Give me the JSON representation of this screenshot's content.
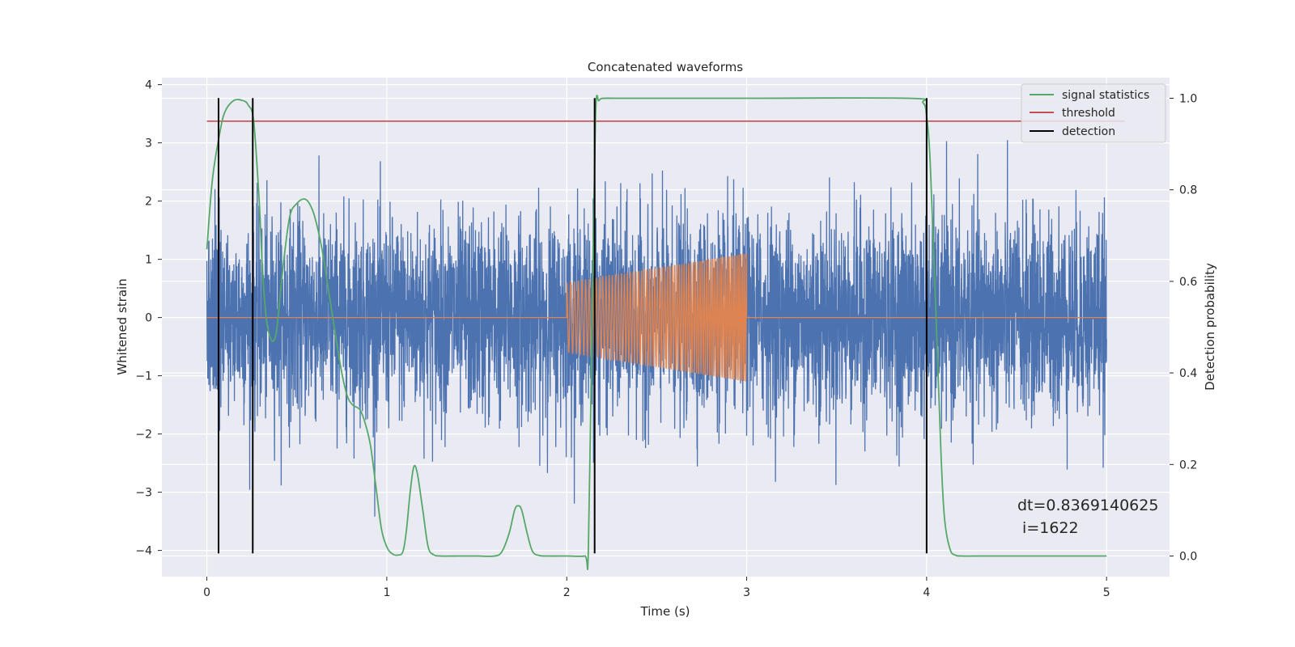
{
  "chart_data": {
    "type": "line",
    "title": "Concatenated waveforms",
    "xlabel": "Time (s)",
    "ylabel": "Whitened strain",
    "y2label": "Detection probability",
    "xlim": [
      -0.25,
      5.35
    ],
    "ylim": [
      -4.45,
      4.12
    ],
    "y2lim": [
      -0.045,
      1.045
    ],
    "x_ticks": [
      0,
      1,
      2,
      3,
      4,
      5
    ],
    "y_ticks": [
      -4,
      -3,
      -2,
      -1,
      0,
      1,
      2,
      3,
      4
    ],
    "y2_ticks": [
      0.0,
      0.2,
      0.4,
      0.6,
      0.8,
      1.0
    ],
    "x_tick_labels": [
      "0",
      "1",
      "2",
      "3",
      "4",
      "5"
    ],
    "y_tick_labels": [
      "−4",
      "−3",
      "−2",
      "−1",
      "0",
      "1",
      "2",
      "3",
      "4"
    ],
    "y2_tick_labels": [
      "0.0",
      "0.2",
      "0.4",
      "0.6",
      "0.8",
      "1.0"
    ],
    "grid": true,
    "legend_position": "top-right",
    "colors": {
      "strain": "#4c72b0",
      "injection": "#dd8452",
      "signal_statistics": "#55a868",
      "threshold": "#c44e52",
      "detection": "#000000",
      "plot_bg": "#eaeaf2",
      "grid": "#ffffff"
    },
    "legend": [
      {
        "label": "signal statistics",
        "color": "#55a868"
      },
      {
        "label": "threshold",
        "color": "#c44e52"
      },
      {
        "label": "detection",
        "color": "#000000"
      }
    ],
    "series": [
      {
        "name": "strain",
        "axis": "left",
        "description_kind": "noise",
        "x_range": [
          0,
          5
        ],
        "sigma": 0.85
      },
      {
        "name": "injection",
        "axis": "left",
        "x_range": [
          2.0,
          3.0
        ],
        "amplitude_start": 0.6,
        "amplitude_end": 1.1
      },
      {
        "name": "signal statistics",
        "axis": "right",
        "x": [
          0.0,
          0.03,
          0.07,
          0.1,
          0.15,
          0.2,
          0.23,
          0.26,
          0.29,
          0.31,
          0.33,
          0.35,
          0.37,
          0.39,
          0.42,
          0.46,
          0.5,
          0.54,
          0.57,
          0.6,
          0.64,
          0.68,
          0.72,
          0.75,
          0.78,
          0.81,
          0.85,
          0.88,
          0.91,
          0.94,
          0.97,
          1.0,
          1.03,
          1.06,
          1.09,
          1.11,
          1.13,
          1.15,
          1.17,
          1.2,
          1.23,
          1.26,
          1.3,
          1.4,
          1.5,
          1.6,
          1.64,
          1.68,
          1.71,
          1.73,
          1.75,
          1.78,
          1.81,
          1.85,
          1.9,
          2.0,
          2.1,
          2.12,
          2.14,
          2.16,
          2.18,
          2.22,
          2.3,
          3.0,
          3.9,
          3.98,
          4.0,
          4.02,
          4.05,
          4.08,
          4.1,
          4.13,
          4.16,
          4.2,
          4.3,
          5.0
        ],
        "values": [
          0.67,
          0.82,
          0.92,
          0.97,
          0.995,
          0.995,
          0.985,
          0.95,
          0.78,
          0.62,
          0.52,
          0.48,
          0.47,
          0.5,
          0.62,
          0.74,
          0.77,
          0.78,
          0.77,
          0.74,
          0.67,
          0.57,
          0.47,
          0.4,
          0.35,
          0.33,
          0.32,
          0.29,
          0.24,
          0.15,
          0.06,
          0.02,
          0.005,
          0.002,
          0.01,
          0.06,
          0.14,
          0.195,
          0.18,
          0.1,
          0.02,
          0.003,
          0.0,
          0.0,
          0.0,
          0.0,
          0.01,
          0.05,
          0.1,
          0.11,
          0.1,
          0.05,
          0.01,
          0.001,
          0.0,
          0.0,
          0.0,
          0.01,
          0.5,
          0.96,
          0.995,
          1.0,
          1.0,
          1.0,
          1.0,
          0.99,
          0.96,
          0.86,
          0.55,
          0.22,
          0.08,
          0.015,
          0.002,
          0.0,
          0.0,
          0.0
        ]
      },
      {
        "name": "threshold",
        "axis": "right",
        "value": 0.95,
        "x_range": [
          0,
          5.1
        ]
      }
    ],
    "detections": [
      0.065,
      0.255,
      2.155,
      4.0
    ],
    "detection_range": [
      -4.05,
      3.77
    ],
    "annotation": {
      "line1": "dt=0.8369140625",
      "line2": " i=1622"
    }
  }
}
